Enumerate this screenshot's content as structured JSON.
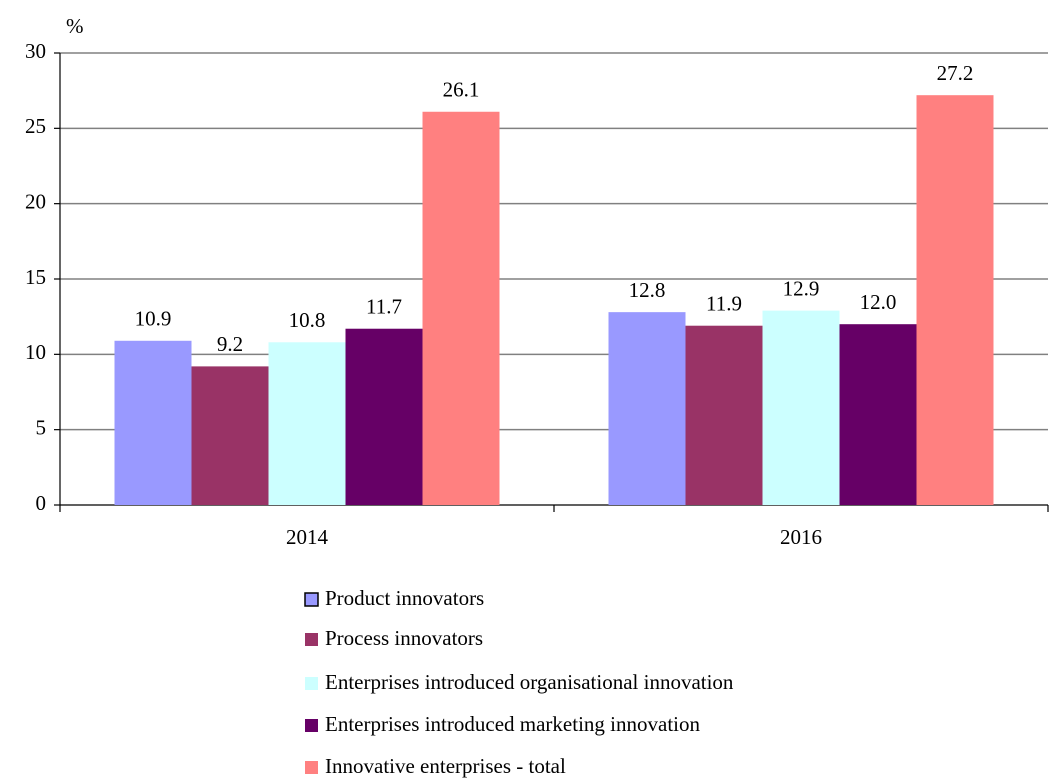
{
  "chart_data": {
    "type": "bar",
    "y_label": "%",
    "categories": [
      "2014",
      "2016"
    ],
    "series": [
      {
        "name": "Product innovators",
        "color": "#9999ff",
        "values": [
          10.9,
          12.8
        ],
        "value_labels": [
          "10.9",
          "12.8"
        ]
      },
      {
        "name": "Process innovators",
        "color": "#993366",
        "values": [
          9.2,
          11.9
        ],
        "value_labels": [
          "9.2",
          "11.9"
        ]
      },
      {
        "name": "Enterprises introduced organisational innovation",
        "color": "#ccffff",
        "values": [
          10.8,
          12.9
        ],
        "value_labels": [
          "10.8",
          "12.9"
        ]
      },
      {
        "name": "Enterprises introduced marketing innovation",
        "color": "#660066",
        "values": [
          11.7,
          12.0
        ],
        "value_labels": [
          "11.7",
          "12.0"
        ]
      },
      {
        "name": "Innovative enterprises - total",
        "color": "#ff8080",
        "values": [
          26.1,
          27.2
        ],
        "value_labels": [
          "26.1",
          "27.2"
        ]
      }
    ],
    "ylim": [
      0,
      30
    ],
    "yticks": [
      0,
      5,
      10,
      15,
      20,
      25,
      30
    ],
    "grid": true,
    "legend": "bottom"
  }
}
